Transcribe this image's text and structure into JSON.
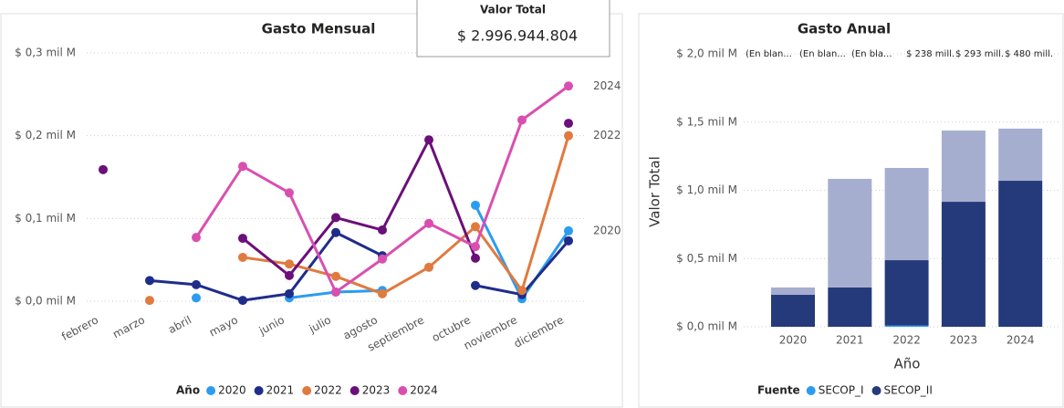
{
  "card": {
    "title": "Valor Total",
    "value": "$ 2.996.944.804"
  },
  "chart_data": [
    {
      "type": "line",
      "title": "Gasto Mensual",
      "categories": [
        "febrero",
        "marzo",
        "abril",
        "mayo",
        "junio",
        "julio",
        "agosto",
        "septiembre",
        "octubre",
        "noviembre",
        "diciembre"
      ],
      "ylim": [
        0,
        0.3
      ],
      "yticks": [
        {
          "value": 0,
          "label": "$ 0,0 mil M"
        },
        {
          "value": 0.1,
          "label": "$ 0,1 mil M"
        },
        {
          "value": 0.2,
          "label": "$ 0,2 mil M"
        },
        {
          "value": 0.3,
          "label": "$ 0,3 mil M"
        }
      ],
      "grid": true,
      "legend_title": "Año",
      "legend": "bottom",
      "series": [
        {
          "name": "2020",
          "color": "#2c9cf0",
          "end_label": true,
          "values": [
            null,
            null,
            0.004,
            null,
            0.004,
            0.011,
            0.013,
            null,
            0.116,
            0.003,
            0.085
          ]
        },
        {
          "name": "2021",
          "color": "#1f2d8a",
          "end_label": false,
          "values": [
            null,
            0.025,
            0.02,
            0.001,
            0.009,
            0.083,
            0.055,
            null,
            0.019,
            0.008,
            0.073
          ]
        },
        {
          "name": "2022",
          "color": "#e07a3f",
          "end_label": true,
          "values": [
            null,
            0.001,
            null,
            0.053,
            0.045,
            0.03,
            0.009,
            0.041,
            0.09,
            0.013,
            0.2
          ]
        },
        {
          "name": "2023",
          "color": "#6b0f7a",
          "end_label": false,
          "values": [
            0.159,
            null,
            null,
            0.076,
            0.031,
            0.101,
            0.086,
            0.195,
            0.052,
            null,
            0.215
          ]
        },
        {
          "name": "2024",
          "color": "#d94fb0",
          "end_label": true,
          "values": [
            null,
            null,
            0.077,
            0.163,
            0.131,
            0.011,
            0.051,
            0.094,
            0.066,
            0.219,
            0.26
          ]
        }
      ]
    },
    {
      "type": "stacked_bar",
      "title": "Gasto Anual",
      "ylabel": "Valor Total",
      "xlabel": "Año",
      "categories": [
        "2020",
        "2021",
        "2022",
        "2023",
        "2024"
      ],
      "ylim": [
        0,
        2.0
      ],
      "yticks": [
        {
          "value": 0,
          "label": "$ 0,0 mil M"
        },
        {
          "value": 0.5,
          "label": "$ 0,5 mil M"
        },
        {
          "value": 1.0,
          "label": "$ 1,0 mil M"
        },
        {
          "value": 1.5,
          "label": "$ 1,5 mil M"
        },
        {
          "value": 2.0,
          "label": "$ 2,0 mil M"
        }
      ],
      "grid": true,
      "legend_title": "Fuente",
      "legend": "bottom",
      "series": [
        {
          "name": "SECOP_I",
          "color": "#2c9cf0",
          "values": [
            0,
            0,
            0.01,
            0,
            0
          ]
        },
        {
          "name": "SECOP_II",
          "color": "#243a7a",
          "values": [
            0.234,
            0.288,
            0.478,
            0.916,
            1.07
          ]
        }
      ],
      "unhighlighted": {
        "color": "#a6aed0",
        "values": [
          0.054,
          0.796,
          0.676,
          0.522,
          0.382
        ]
      },
      "top_labels": [
        "(En blan...",
        "(En blan...",
        "(En bla...",
        "$ 238 mill.",
        "$ 293 mill.",
        "$ 480 mill."
      ]
    }
  ]
}
